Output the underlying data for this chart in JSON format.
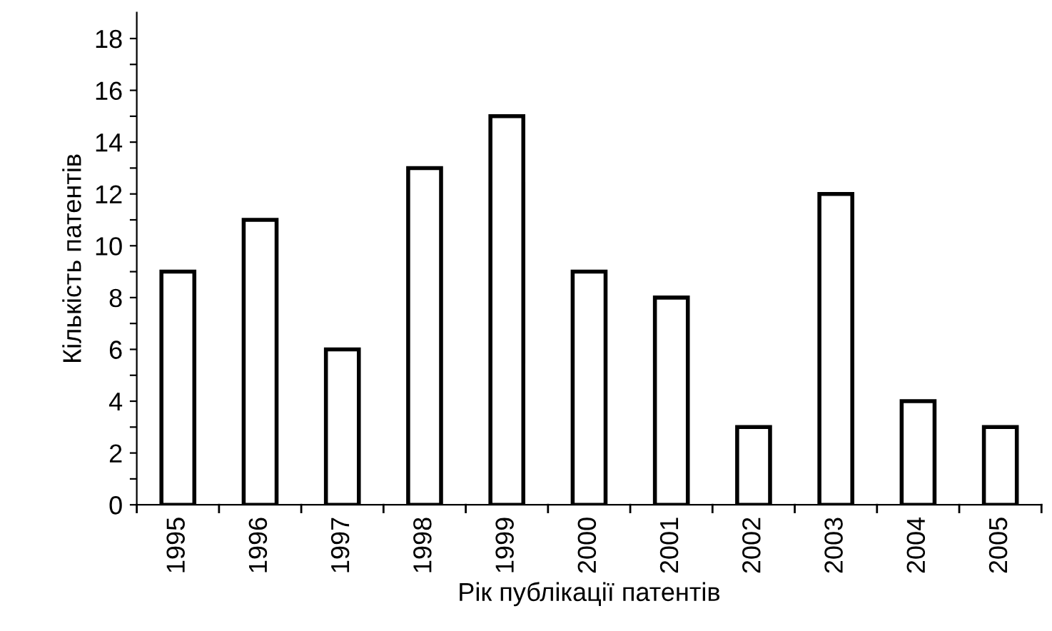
{
  "chart_data": {
    "type": "bar",
    "xlabel": "Рік публікації патентів",
    "ylabel": "Кількість патентів",
    "categories": [
      "1995",
      "1996",
      "1997",
      "1998",
      "1999",
      "2000",
      "2001",
      "2002",
      "2003",
      "2004",
      "2005"
    ],
    "values": [
      9,
      11,
      6,
      13,
      15,
      9,
      8,
      3,
      12,
      4,
      3
    ],
    "color": "#ffffff",
    "ylim": [
      0,
      19
    ],
    "yticks": [
      0,
      {
        "value": 1,
        "label": null
      },
      2,
      {
        "value": 3,
        "label": null
      },
      4,
      {
        "value": 5,
        "label": null
      },
      6,
      {
        "value": 7,
        "label": null
      },
      8,
      {
        "value": 9,
        "label": null
      },
      10,
      {
        "value": 11,
        "label": null
      },
      12,
      {
        "value": 13,
        "label": null
      },
      14,
      {
        "value": 15,
        "label": null
      },
      16,
      {
        "value": 17,
        "label": null
      },
      18
    ],
    "grid": false,
    "legend": false
  }
}
